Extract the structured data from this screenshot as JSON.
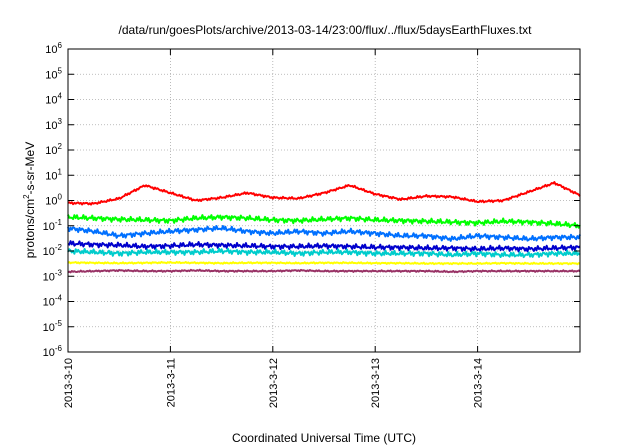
{
  "chart_data": {
    "type": "line",
    "title": "/data/run/goesPlots/archive/2013-03-14/23:00/flux/../flux/5daysEarthFluxes.txt",
    "xlabel": "Coordinated Universal Time (UTC)",
    "ylabel_main": "protons/cm",
    "ylabel_sup": "2",
    "ylabel_rest": "-s-sr-MeV",
    "yscale": "log",
    "ylim": [
      1e-06,
      1000000.0
    ],
    "xlim": [
      "2013-03-10",
      "2013-03-15"
    ],
    "grid": true,
    "legend": "none",
    "y_ticks": [
      {
        "value": 1e-06,
        "base": "10",
        "exp": "-6"
      },
      {
        "value": 1e-05,
        "base": "10",
        "exp": "-5"
      },
      {
        "value": 0.0001,
        "base": "10",
        "exp": "-4"
      },
      {
        "value": 0.001,
        "base": "10",
        "exp": "-3"
      },
      {
        "value": 0.01,
        "base": "10",
        "exp": "-2"
      },
      {
        "value": 0.1,
        "base": "10",
        "exp": "-1"
      },
      {
        "value": 1.0,
        "base": "10",
        "exp": "0"
      },
      {
        "value": 10.0,
        "base": "10",
        "exp": "1"
      },
      {
        "value": 100.0,
        "base": "10",
        "exp": "2"
      },
      {
        "value": 1000.0,
        "base": "10",
        "exp": "3"
      },
      {
        "value": 10000.0,
        "base": "10",
        "exp": "4"
      },
      {
        "value": 100000.0,
        "base": "10",
        "exp": "5"
      },
      {
        "value": 1000000.0,
        "base": "10",
        "exp": "6"
      }
    ],
    "x_ticks": [
      {
        "day": 0,
        "label": "2013-3-10"
      },
      {
        "day": 1,
        "label": "2013-3-11"
      },
      {
        "day": 2,
        "label": "2013-3-12"
      },
      {
        "day": 3,
        "label": "2013-3-13"
      },
      {
        "day": 4,
        "label": "2013-3-14"
      }
    ],
    "series": [
      {
        "color": "#ff0000",
        "x": [
          0,
          0.25,
          0.5,
          0.75,
          1,
          1.25,
          1.5,
          1.75,
          2,
          2.25,
          2.5,
          2.75,
          3,
          3.25,
          3.5,
          3.75,
          4,
          4.25,
          4.5,
          4.75,
          5
        ],
        "values": [
          0.8,
          0.75,
          1.2,
          4.0,
          2.0,
          1.0,
          1.3,
          2.0,
          1.3,
          1.2,
          2.0,
          4.0,
          1.8,
          1.1,
          1.5,
          1.4,
          0.9,
          1.0,
          2.2,
          5.0,
          1.6
        ]
      },
      {
        "color": "#00ff00",
        "x": [
          0,
          0.25,
          0.5,
          0.75,
          1,
          1.25,
          1.5,
          1.75,
          2,
          2.25,
          2.5,
          2.75,
          3,
          3.25,
          3.5,
          3.75,
          4,
          4.25,
          4.5,
          4.75,
          5
        ],
        "values": [
          0.22,
          0.2,
          0.18,
          0.17,
          0.16,
          0.2,
          0.22,
          0.2,
          0.17,
          0.16,
          0.18,
          0.2,
          0.17,
          0.16,
          0.15,
          0.14,
          0.13,
          0.15,
          0.14,
          0.12,
          0.1
        ]
      },
      {
        "color": "#0070ff",
        "x": [
          0,
          0.25,
          0.5,
          0.75,
          1,
          1.25,
          1.5,
          1.75,
          2,
          2.25,
          2.5,
          2.75,
          3,
          3.25,
          3.5,
          3.75,
          4,
          4.25,
          4.5,
          4.75,
          5
        ],
        "values": [
          0.08,
          0.06,
          0.04,
          0.05,
          0.06,
          0.07,
          0.08,
          0.06,
          0.05,
          0.06,
          0.05,
          0.06,
          0.05,
          0.04,
          0.04,
          0.03,
          0.04,
          0.035,
          0.03,
          0.035,
          0.035
        ]
      },
      {
        "color": "#0000cc",
        "x": [
          0,
          0.25,
          0.5,
          0.75,
          1,
          1.25,
          1.5,
          1.75,
          2,
          2.25,
          2.5,
          2.75,
          3,
          3.25,
          3.5,
          3.75,
          4,
          4.25,
          4.5,
          4.75,
          5
        ],
        "values": [
          0.02,
          0.018,
          0.017,
          0.015,
          0.016,
          0.018,
          0.017,
          0.016,
          0.015,
          0.015,
          0.016,
          0.015,
          0.014,
          0.014,
          0.013,
          0.013,
          0.012,
          0.013,
          0.012,
          0.013,
          0.014
        ]
      },
      {
        "color": "#00cccc",
        "x": [
          0,
          0.25,
          0.5,
          0.75,
          1,
          1.25,
          1.5,
          1.75,
          2,
          2.25,
          2.5,
          2.75,
          3,
          3.25,
          3.5,
          3.75,
          4,
          4.25,
          4.5,
          4.75,
          5
        ],
        "values": [
          0.01,
          0.009,
          0.008,
          0.009,
          0.009,
          0.009,
          0.01,
          0.009,
          0.009,
          0.008,
          0.009,
          0.009,
          0.008,
          0.008,
          0.008,
          0.007,
          0.008,
          0.007,
          0.007,
          0.008,
          0.008
        ]
      },
      {
        "color": "#ffff00",
        "x": [
          0,
          0.25,
          0.5,
          0.75,
          1,
          1.25,
          1.5,
          1.75,
          2,
          2.25,
          2.5,
          2.75,
          3,
          3.25,
          3.5,
          3.75,
          4,
          4.25,
          4.5,
          4.75,
          5
        ],
        "values": [
          0.0035,
          0.0034,
          0.0033,
          0.0034,
          0.0035,
          0.0034,
          0.0033,
          0.0034,
          0.0034,
          0.0033,
          0.0034,
          0.0034,
          0.0033,
          0.0033,
          0.0032,
          0.0032,
          0.0032,
          0.0033,
          0.0032,
          0.0032,
          0.0032
        ]
      },
      {
        "color": "#993366",
        "x": [
          0,
          0.25,
          0.5,
          0.75,
          1,
          1.25,
          1.5,
          1.75,
          2,
          2.25,
          2.5,
          2.75,
          3,
          3.25,
          3.5,
          3.75,
          4,
          4.25,
          4.5,
          4.75,
          5
        ],
        "values": [
          0.0015,
          0.0016,
          0.0017,
          0.0016,
          0.0016,
          0.0017,
          0.0016,
          0.0016,
          0.0016,
          0.0017,
          0.0016,
          0.0016,
          0.0016,
          0.0016,
          0.0016,
          0.0015,
          0.0016,
          0.0016,
          0.0016,
          0.0016,
          0.0016
        ]
      }
    ]
  }
}
